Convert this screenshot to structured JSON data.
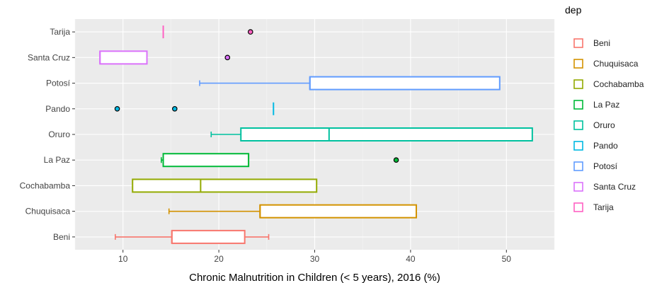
{
  "chart_data": {
    "type": "box",
    "orientation": "horizontal",
    "xlabel": "Chronic Malnutrition in Children (< 5 years), 2016 (%)",
    "ylabel": "",
    "xlim": [
      5,
      55
    ],
    "xticks": [
      10,
      20,
      30,
      40,
      50
    ],
    "grid": true,
    "legend": {
      "title": "dep",
      "placement": "right",
      "entries": [
        "Beni",
        "Chuquisaca",
        "Cochabamba",
        "La Paz",
        "Oruro",
        "Pando",
        "Potosí",
        "Santa Cruz",
        "Tarija"
      ]
    },
    "categories": [
      "Tarija",
      "Santa Cruz",
      "Potosí",
      "Pando",
      "Oruro",
      "La Paz",
      "Cochabamba",
      "Chuquisaca",
      "Beni"
    ],
    "series": [
      {
        "name": "Beni",
        "color": "#F8766D",
        "min": 9.2,
        "q1": 15.1,
        "median": 15.1,
        "q3": 22.7,
        "max": 25.2,
        "outliers": []
      },
      {
        "name": "Chuquisaca",
        "color": "#D39200",
        "min": 14.8,
        "q1": 24.3,
        "median": 24.3,
        "q3": 40.6,
        "max": 40.6,
        "outliers": []
      },
      {
        "name": "Cochabamba",
        "color": "#93AA00",
        "min": 11.0,
        "q1": 11.0,
        "median": 18.1,
        "q3": 30.2,
        "max": 30.2,
        "outliers": []
      },
      {
        "name": "La Paz",
        "color": "#00BA38",
        "min": 14.0,
        "q1": 14.2,
        "median": 23.1,
        "q3": 23.1,
        "max": 23.1,
        "outliers": [
          38.5
        ]
      },
      {
        "name": "Oruro",
        "color": "#00C19F",
        "min": 19.2,
        "q1": 22.3,
        "median": 31.5,
        "q3": 52.7,
        "max": 52.7,
        "outliers": []
      },
      {
        "name": "Pando",
        "color": "#00B9E3",
        "min": 25.7,
        "q1": 25.7,
        "median": 25.7,
        "q3": 25.7,
        "max": 25.7,
        "outliers": [
          9.4,
          15.4
        ]
      },
      {
        "name": "Potosí",
        "color": "#619CFF",
        "min": 18.0,
        "q1": 29.5,
        "median": 29.5,
        "q3": 49.3,
        "max": 49.3,
        "outliers": []
      },
      {
        "name": "Santa Cruz",
        "color": "#DB72FB",
        "min": 7.6,
        "q1": 7.6,
        "median": 7.6,
        "q3": 12.5,
        "max": 12.5,
        "outliers": [
          20.9
        ]
      },
      {
        "name": "Tarija",
        "color": "#FF61C3",
        "min": 14.2,
        "q1": 14.2,
        "median": 14.2,
        "q3": 14.2,
        "max": 14.2,
        "outliers": [
          23.3
        ]
      }
    ]
  }
}
